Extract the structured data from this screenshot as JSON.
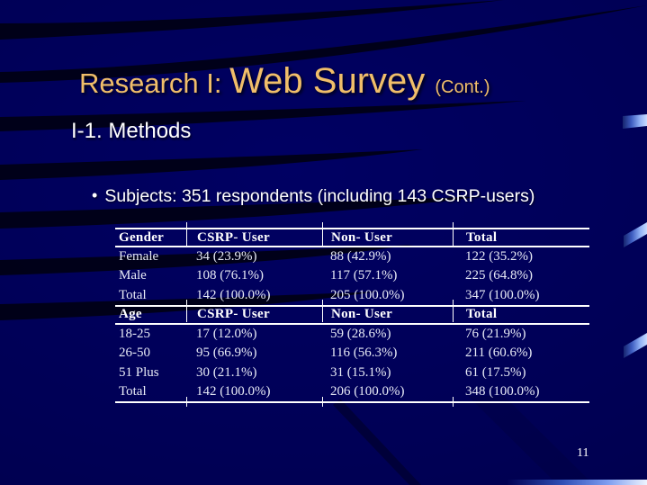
{
  "slide": {
    "title": {
      "prefix": "Research I: ",
      "main": "Web Survey ",
      "suffix": "(Cont.)"
    },
    "subtitle": "I-1. Methods",
    "bullet": {
      "marker": "•",
      "text": "Subjects: 351 respondents (including 143 CSRP-users)"
    },
    "page_number": "11"
  },
  "table": {
    "sections": [
      {
        "header": [
          "Gender",
          "CSRP- User",
          "Non- User",
          "Total"
        ],
        "rows": [
          [
            "Female",
            "34 (23.9%)",
            "88 (42.9%)",
            "122 (35.2%)"
          ],
          [
            "Male",
            "108 (76.1%)",
            "117 (57.1%)",
            "225 (64.8%)"
          ],
          [
            "Total",
            "142 (100.0%)",
            "205 (100.0%)",
            "347 (100.0%)"
          ]
        ]
      },
      {
        "header": [
          "Age",
          "CSRP- User",
          "Non- User",
          "Total"
        ],
        "rows": [
          [
            "18-25",
            "17 (12.0%)",
            "59 (28.6%)",
            "76 (21.9%)"
          ],
          [
            "26-50",
            "95 (66.9%)",
            "116 (56.3%)",
            "211 (60.6%)"
          ],
          [
            "51 Plus",
            "30 (21.1%)",
            "31 (15.1%)",
            "61 (17.5%)"
          ],
          [
            "Total",
            "142 (100.0%)",
            "206 (100.0%)",
            "348 (100.0%)"
          ]
        ]
      }
    ]
  },
  "colors": {
    "background": "#000055",
    "title_text": "#F0BE6A",
    "body_text": "#FFFFFF",
    "table_text": "#E7EAF6",
    "table_rule": "#FFFFFF",
    "ribbon_highlight": "#B9D2FF",
    "ribbon_base": "#16246E",
    "swoosh": "#000012"
  }
}
